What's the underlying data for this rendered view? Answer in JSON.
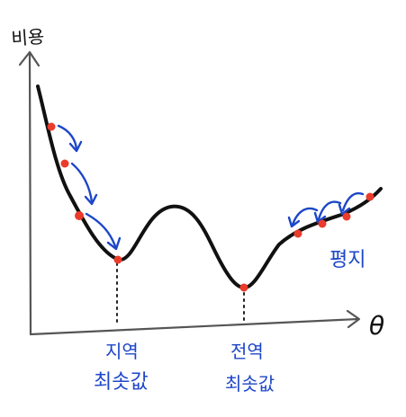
{
  "labels": {
    "y_axis": "비용",
    "x_axis": "θ",
    "local_min_line1": "지역",
    "local_min_line2": "최솟값",
    "global_min_line1": "전역",
    "global_min_line2": "최솟값",
    "plateau": "평지"
  },
  "colors": {
    "curve": "#111111",
    "axis": "#555555",
    "arrow": "#1d46c8",
    "point": "#ea3b2b",
    "label": "#1d46c8"
  }
}
